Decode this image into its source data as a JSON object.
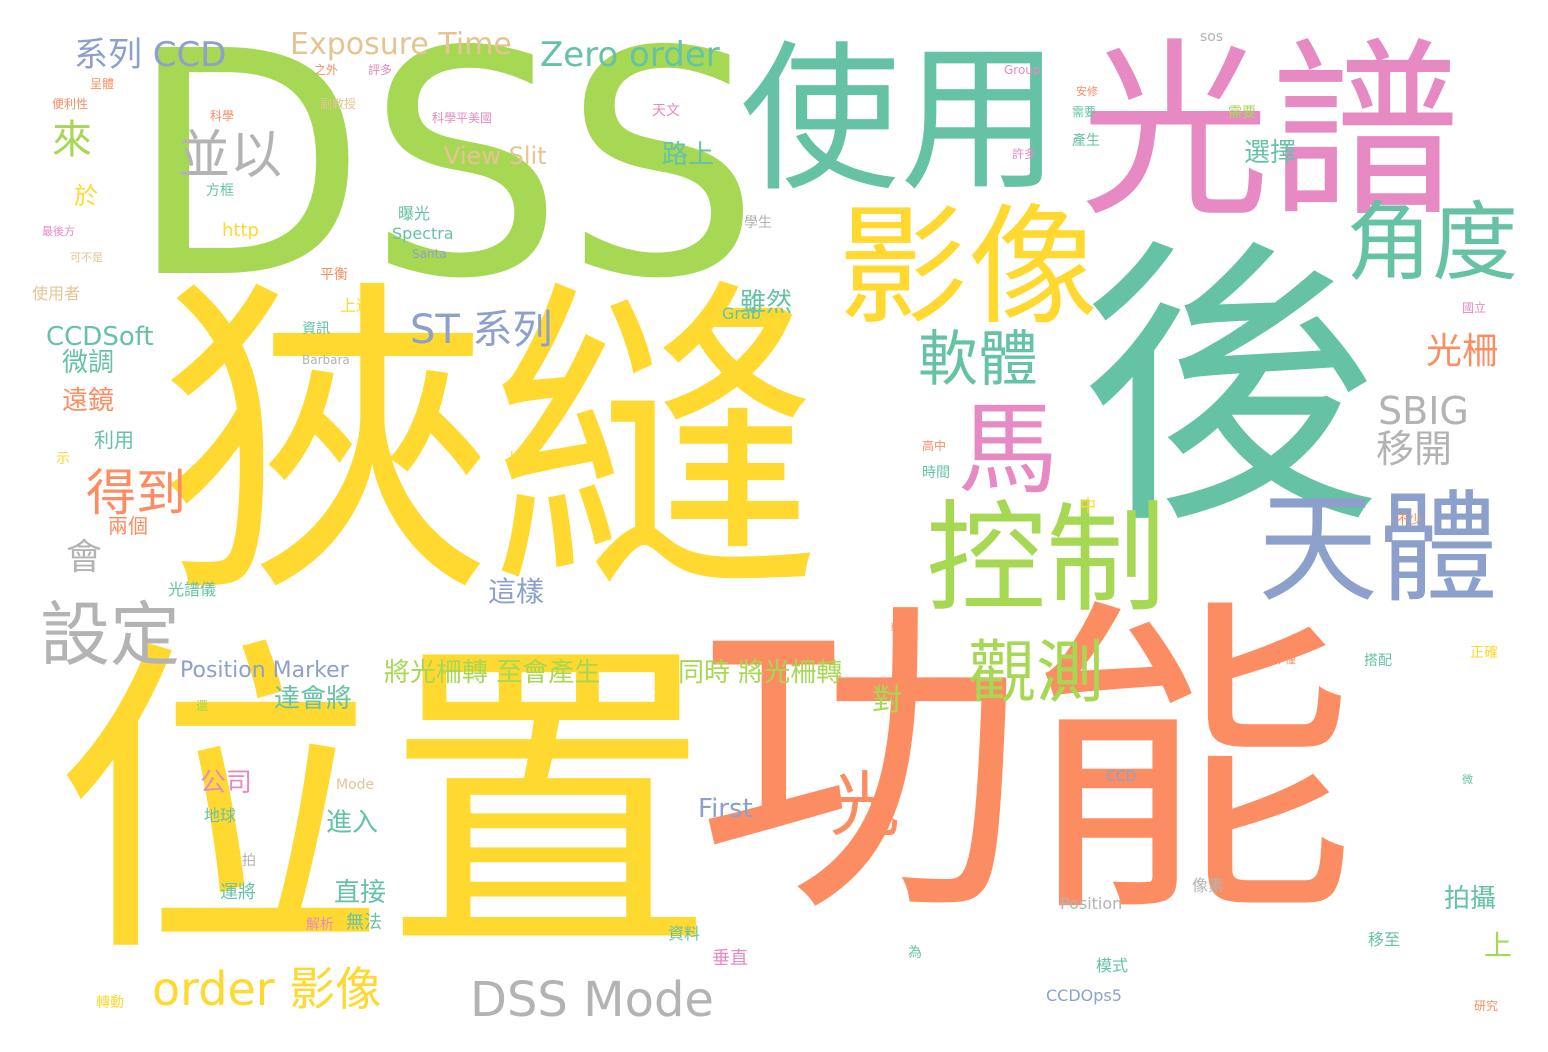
{
  "palette": {
    "green": "#a6d854",
    "teal": "#66c2a5",
    "pink": "#e78ac3",
    "yellow": "#ffd92f",
    "orange": "#fc8d62",
    "blue": "#8da0cb",
    "gray": "#b3b3b3",
    "tan": "#e5c494"
  },
  "words": [
    {
      "text": "DSS",
      "color": "green"
    },
    {
      "text": "狹縫",
      "color": "yellow"
    },
    {
      "text": "位置",
      "color": "yellow"
    },
    {
      "text": "功能",
      "color": "orange"
    },
    {
      "text": "後",
      "color": "teal"
    },
    {
      "text": "光譜",
      "color": "pink"
    },
    {
      "text": "使用",
      "color": "teal"
    },
    {
      "text": "影像",
      "color": "yellow"
    },
    {
      "text": "控制",
      "color": "green"
    },
    {
      "text": "天體",
      "color": "blue"
    },
    {
      "text": "馬",
      "color": "pink"
    },
    {
      "text": "角度",
      "color": "teal"
    },
    {
      "text": "觀測",
      "color": "green"
    },
    {
      "text": "軟體",
      "color": "teal"
    },
    {
      "text": "設定",
      "color": "gray"
    },
    {
      "text": "光",
      "color": "orange"
    },
    {
      "text": "並以",
      "color": "gray"
    },
    {
      "text": "得到",
      "color": "orange"
    },
    {
      "text": "系列 CCD",
      "color": "blue"
    },
    {
      "text": "Exposure Time",
      "color": "tan"
    },
    {
      "text": "Zero order",
      "color": "teal"
    },
    {
      "text": "ST 系列",
      "color": "blue"
    },
    {
      "text": "SBIG",
      "color": "gray"
    },
    {
      "text": "移開",
      "color": "gray"
    },
    {
      "text": "光柵",
      "color": "orange"
    },
    {
      "text": "DSS Mode",
      "color": "gray"
    },
    {
      "text": "order 影像",
      "color": "yellow"
    },
    {
      "text": "來",
      "color": "green"
    },
    {
      "text": "會",
      "color": "gray"
    },
    {
      "text": "View Slit",
      "color": "tan"
    },
    {
      "text": "CCDSoft",
      "color": "teal"
    },
    {
      "text": "將光柵轉 至會產生",
      "color": "green"
    },
    {
      "text": "同時 將光柵轉",
      "color": "green"
    },
    {
      "text": "Position Marker",
      "color": "blue"
    },
    {
      "text": "達會將",
      "color": "teal"
    },
    {
      "text": "這樣",
      "color": "blue"
    },
    {
      "text": "遠鏡",
      "color": "orange"
    },
    {
      "text": "微調",
      "color": "teal"
    },
    {
      "text": "路上",
      "color": "teal"
    },
    {
      "text": "雖然",
      "color": "teal"
    },
    {
      "text": "選擇",
      "color": "teal"
    },
    {
      "text": "拍攝",
      "color": "teal"
    },
    {
      "text": "公司",
      "color": "pink"
    },
    {
      "text": "進入",
      "color": "teal"
    },
    {
      "text": "直接",
      "color": "teal"
    },
    {
      "text": "First",
      "color": "blue"
    },
    {
      "text": "對",
      "color": "green"
    },
    {
      "text": "於",
      "color": "yellow"
    },
    {
      "text": "上",
      "color": "green"
    },
    {
      "text": "利用",
      "color": "teal"
    },
    {
      "text": "兩個",
      "color": "orange"
    },
    {
      "text": "http",
      "color": "yellow"
    },
    {
      "text": "Spectra",
      "color": "teal"
    },
    {
      "text": "Grab",
      "color": "teal"
    },
    {
      "text": "CCDOps5",
      "color": "blue"
    },
    {
      "text": "Position",
      "color": "gray"
    },
    {
      "text": "Instrument",
      "color": "yellow"
    },
    {
      "text": "Santa",
      "color": "blue"
    },
    {
      "text": "Barbara",
      "color": "gray"
    },
    {
      "text": "Mode",
      "color": "tan"
    },
    {
      "text": "CCD",
      "color": "blue"
    },
    {
      "text": "Group",
      "color": "pink"
    },
    {
      "text": "sos",
      "color": "gray"
    },
    {
      "text": "地球",
      "color": "teal"
    },
    {
      "text": "運將",
      "color": "teal"
    },
    {
      "text": "無法",
      "color": "teal"
    },
    {
      "text": "解析",
      "color": "pink"
    },
    {
      "text": "資料",
      "color": "teal"
    },
    {
      "text": "垂直",
      "color": "pink"
    },
    {
      "text": "像素",
      "color": "gray"
    },
    {
      "text": "模式",
      "color": "teal"
    },
    {
      "text": "移至",
      "color": "teal"
    },
    {
      "text": "光譜儀",
      "color": "teal"
    },
    {
      "text": "使用者",
      "color": "tan"
    },
    {
      "text": "曝光",
      "color": "teal"
    },
    {
      "text": "資訊",
      "color": "teal"
    },
    {
      "text": "上述",
      "color": "yellow"
    },
    {
      "text": "平衡",
      "color": "orange"
    },
    {
      "text": "學生",
      "color": "gray"
    },
    {
      "text": "時間",
      "color": "teal"
    },
    {
      "text": "高中",
      "color": "orange"
    },
    {
      "text": "產生",
      "color": "teal"
    },
    {
      "text": "許多",
      "color": "pink"
    },
    {
      "text": "天文",
      "color": "pink"
    },
    {
      "text": "方框",
      "color": "teal"
    },
    {
      "text": "科學",
      "color": "orange"
    },
    {
      "text": "副教授",
      "color": "tan"
    },
    {
      "text": "之外",
      "color": "orange"
    },
    {
      "text": "評多",
      "color": "pink"
    },
    {
      "text": "呈體",
      "color": "orange"
    },
    {
      "text": "便利性",
      "color": "orange"
    },
    {
      "text": "科學平美國",
      "color": "pink"
    },
    {
      "text": "最後方",
      "color": "pink"
    },
    {
      "text": "可不是",
      "color": "tan"
    },
    {
      "text": "需要",
      "color": "teal"
    },
    {
      "text": "安修",
      "color": "orange"
    },
    {
      "text": "需要",
      "color": "green"
    },
    {
      "text": "國立",
      "color": "pink"
    },
    {
      "text": "中",
      "color": "yellow"
    },
    {
      "text": "不少",
      "color": "orange"
    },
    {
      "text": "正確",
      "color": "yellow"
    },
    {
      "text": "搭配",
      "color": "teal"
    },
    {
      "text": "研究",
      "color": "orange"
    },
    {
      "text": "不僅",
      "color": "orange"
    },
    {
      "text": "為",
      "color": "teal"
    },
    {
      "text": "車站",
      "color": "orange"
    },
    {
      "text": "轉動",
      "color": "yellow"
    },
    {
      "text": "微",
      "color": "teal"
    },
    {
      "text": "示",
      "color": "yellow"
    },
    {
      "text": "拍",
      "color": "gray"
    },
    {
      "text": "還",
      "color": "green"
    },
    {
      "text": "畫",
      "color": "orange"
    }
  ]
}
